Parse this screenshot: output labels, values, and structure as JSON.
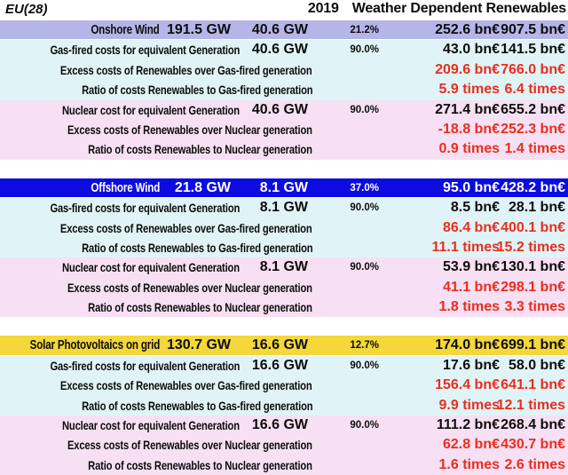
{
  "header": {
    "region": "EU(28)",
    "year": "2019",
    "title": "Weather Dependent Renewables"
  },
  "colors": {
    "onshore_header_bg": "#b5b5e8",
    "offshore_header_bg": "#0b0be2",
    "solar_header_bg": "#f3d73b",
    "gas_block_bg": "#e0f4f7",
    "nuclear_block_bg": "#f7e0f3",
    "red_text": "#eb2d1e"
  },
  "chart_data": {
    "type": "table",
    "title": "EU(28) 2019 Weather Dependent Renewables",
    "sections": [
      {
        "name": "Onshore Wind",
        "installed_capacity": "191.5 GW",
        "equivalent_capacity": "40.6 GW",
        "capacity_percentage": "21.2%",
        "cost_col1": "252.6 bn€",
        "cost_col2": "907.5 bn€",
        "rows": [
          {
            "label": "Gas-fired costs for equivalent Generation",
            "gw": "40.6 GW",
            "pct": "90.0%",
            "v1": "43.0 bn€",
            "v2": "141.5 bn€"
          },
          {
            "label": "Excess costs of Renewables over Gas-fired generation",
            "v1": "209.6 bn€",
            "v2": "766.0 bn€"
          },
          {
            "label": "Ratio of costs Renewables to Gas-fired generation",
            "v1": "5.9 times",
            "v2": "6.4 times"
          },
          {
            "label": "Nuclear cost for equivalent Generation",
            "gw": "40.6 GW",
            "pct": "90.0%",
            "v1": "271.4 bn€",
            "v2": "655.2 bn€"
          },
          {
            "label": "Excess costs of Renewables over Nuclear generation",
            "v1": "-18.8 bn€",
            "v2": "252.3 bn€"
          },
          {
            "label": "Ratio of costs Renewables to Nuclear generation",
            "v1": "0.9 times",
            "v2": "1.4 times"
          }
        ]
      },
      {
        "name": "Offshore Wind",
        "installed_capacity": "21.8 GW",
        "equivalent_capacity": "8.1 GW",
        "capacity_percentage": "37.0%",
        "cost_col1": "95.0 bn€",
        "cost_col2": "428.2 bn€",
        "rows": [
          {
            "label": "Gas-fired costs for equivalent Generation",
            "gw": "8.1 GW",
            "pct": "90.0%",
            "v1": "8.5 bn€",
            "v2": "28.1 bn€"
          },
          {
            "label": "Excess costs of Renewables over Gas-fired generation",
            "v1": "86.4 bn€",
            "v2": "400.1 bn€"
          },
          {
            "label": "Ratio of costs Renewables to Gas-fired generation",
            "v1": "11.1 times",
            "v2": "15.2 times"
          },
          {
            "label": "Nuclear cost for equivalent Generation",
            "gw": "8.1 GW",
            "pct": "90.0%",
            "v1": "53.9 bn€",
            "v2": "130.1 bn€"
          },
          {
            "label": "Excess costs of Renewables over Nuclear generation",
            "v1": "41.1 bn€",
            "v2": "298.1 bn€"
          },
          {
            "label": "Ratio of costs Renewables to Nuclear generation",
            "v1": "1.8 times",
            "v2": "3.3 times"
          }
        ]
      },
      {
        "name": "Solar Photovoltaics on grid",
        "installed_capacity": "130.7 GW",
        "equivalent_capacity": "16.6 GW",
        "capacity_percentage": "12.7%",
        "cost_col1": "174.0 bn€",
        "cost_col2": "699.1 bn€",
        "rows": [
          {
            "label": "Gas-fired costs for equivalent Generation",
            "gw": "16.6 GW",
            "pct": "90.0%",
            "v1": "17.6 bn€",
            "v2": "58.0 bn€"
          },
          {
            "label": "Excess costs of Renewables over Gas-fired generation",
            "v1": "156.4 bn€",
            "v2": "641.1 bn€"
          },
          {
            "label": "Ratio of costs Renewables to Gas-fired generation",
            "v1": "9.9 times",
            "v2": "12.1 times"
          },
          {
            "label": "Nuclear cost for equivalent Generation",
            "gw": "16.6 GW",
            "pct": "90.0%",
            "v1": "111.2 bn€",
            "v2": "268.4 bn€"
          },
          {
            "label": "Excess costs of Renewables over Nuclear generation",
            "v1": "62.8 bn€",
            "v2": "430.7 bn€"
          },
          {
            "label": "Ratio of costs Renewables to Nuclear generation",
            "v1": "1.6 times",
            "v2": "2.6 times"
          }
        ]
      }
    ]
  }
}
